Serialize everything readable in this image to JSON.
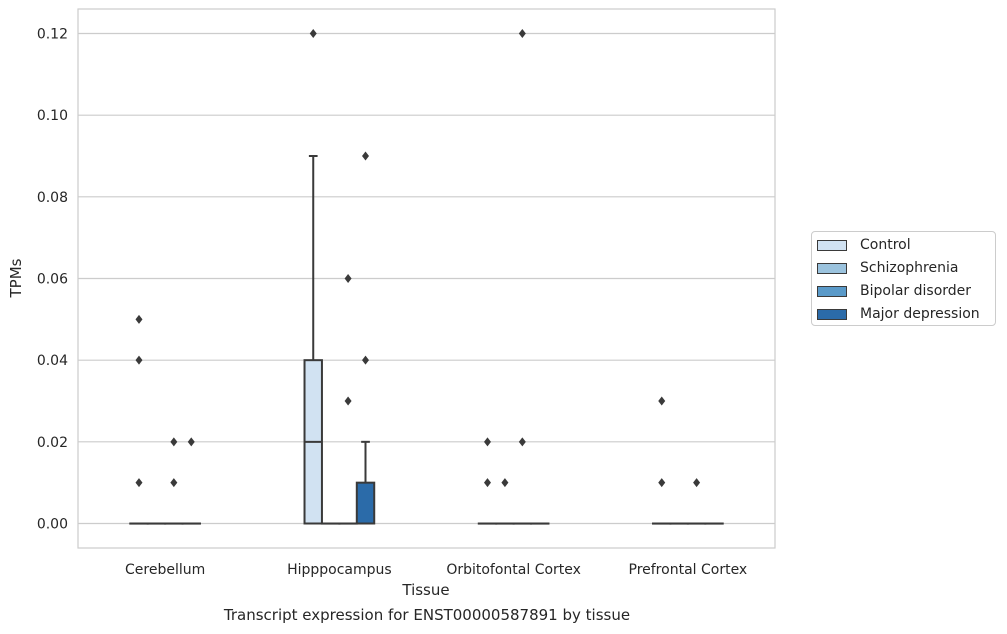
{
  "chart_data": {
    "type": "box",
    "caption": "Transcript expression for ENST00000587891 by tissue",
    "xlabel": "Tissue",
    "ylabel": "TPMs",
    "ylim": [
      -0.006,
      0.126
    ],
    "yticks": [
      0.0,
      0.02,
      0.04,
      0.06,
      0.08,
      0.1,
      0.12
    ],
    "ytick_labels": [
      "0.00",
      "0.02",
      "0.04",
      "0.06",
      "0.08",
      "0.10",
      "0.12"
    ],
    "grid": "horizontal",
    "legend_position": "right",
    "categories": [
      "Cerebellum",
      "Hipppocampus",
      "Orbitofontal Cortex",
      "Prefrontal Cortex"
    ],
    "series": [
      {
        "name": "Control",
        "color": "#d1e2f2",
        "boxes": [
          {
            "q1": 0,
            "median": 0,
            "q3": 0,
            "whisker_low": 0,
            "whisker_high": 0,
            "outliers": [
              0.01,
              0.04,
              0.05
            ]
          },
          {
            "q1": 0,
            "median": 0.02,
            "q3": 0.04,
            "whisker_low": 0,
            "whisker_high": 0.09,
            "outliers": [
              0.12
            ]
          },
          {
            "q1": 0,
            "median": 0,
            "q3": 0,
            "whisker_low": 0,
            "whisker_high": 0,
            "outliers": [
              0.01,
              0.02
            ]
          },
          {
            "q1": 0,
            "median": 0,
            "q3": 0,
            "whisker_low": 0,
            "whisker_high": 0,
            "outliers": [
              0.01,
              0.03
            ]
          }
        ]
      },
      {
        "name": "Schizophrenia",
        "color": "#9bc3de",
        "boxes": [
          {
            "q1": 0,
            "median": 0,
            "q3": 0,
            "whisker_low": 0,
            "whisker_high": 0,
            "outliers": []
          },
          {
            "q1": 0,
            "median": 0,
            "q3": 0,
            "whisker_low": 0,
            "whisker_high": 0,
            "outliers": []
          },
          {
            "q1": 0,
            "median": 0,
            "q3": 0,
            "whisker_low": 0,
            "whisker_high": 0,
            "outliers": [
              0.01
            ]
          },
          {
            "q1": 0,
            "median": 0,
            "q3": 0,
            "whisker_low": 0,
            "whisker_high": 0,
            "outliers": []
          }
        ]
      },
      {
        "name": "Bipolar disorder",
        "color": "#5a9ac9",
        "boxes": [
          {
            "q1": 0,
            "median": 0,
            "q3": 0,
            "whisker_low": 0,
            "whisker_high": 0,
            "outliers": [
              0.01,
              0.02
            ]
          },
          {
            "q1": 0,
            "median": 0,
            "q3": 0,
            "whisker_low": 0,
            "whisker_high": 0,
            "outliers": [
              0.03,
              0.06
            ]
          },
          {
            "q1": 0,
            "median": 0,
            "q3": 0,
            "whisker_low": 0,
            "whisker_high": 0,
            "outliers": [
              0.02,
              0.12
            ]
          },
          {
            "q1": 0,
            "median": 0,
            "q3": 0,
            "whisker_low": 0,
            "whisker_high": 0,
            "outliers": [
              0.01
            ]
          }
        ]
      },
      {
        "name": "Major depression",
        "color": "#2b6ba9",
        "boxes": [
          {
            "q1": 0,
            "median": 0,
            "q3": 0,
            "whisker_low": 0,
            "whisker_high": 0,
            "outliers": [
              0.02
            ]
          },
          {
            "q1": 0,
            "median": 0,
            "q3": 0.01,
            "whisker_low": 0,
            "whisker_high": 0.02,
            "outliers": [
              0.04,
              0.09
            ]
          },
          {
            "q1": 0,
            "median": 0,
            "q3": 0,
            "whisker_low": 0,
            "whisker_high": 0,
            "outliers": []
          },
          {
            "q1": 0,
            "median": 0,
            "q3": 0,
            "whisker_low": 0,
            "whisker_high": 0,
            "outliers": []
          }
        ]
      }
    ]
  }
}
